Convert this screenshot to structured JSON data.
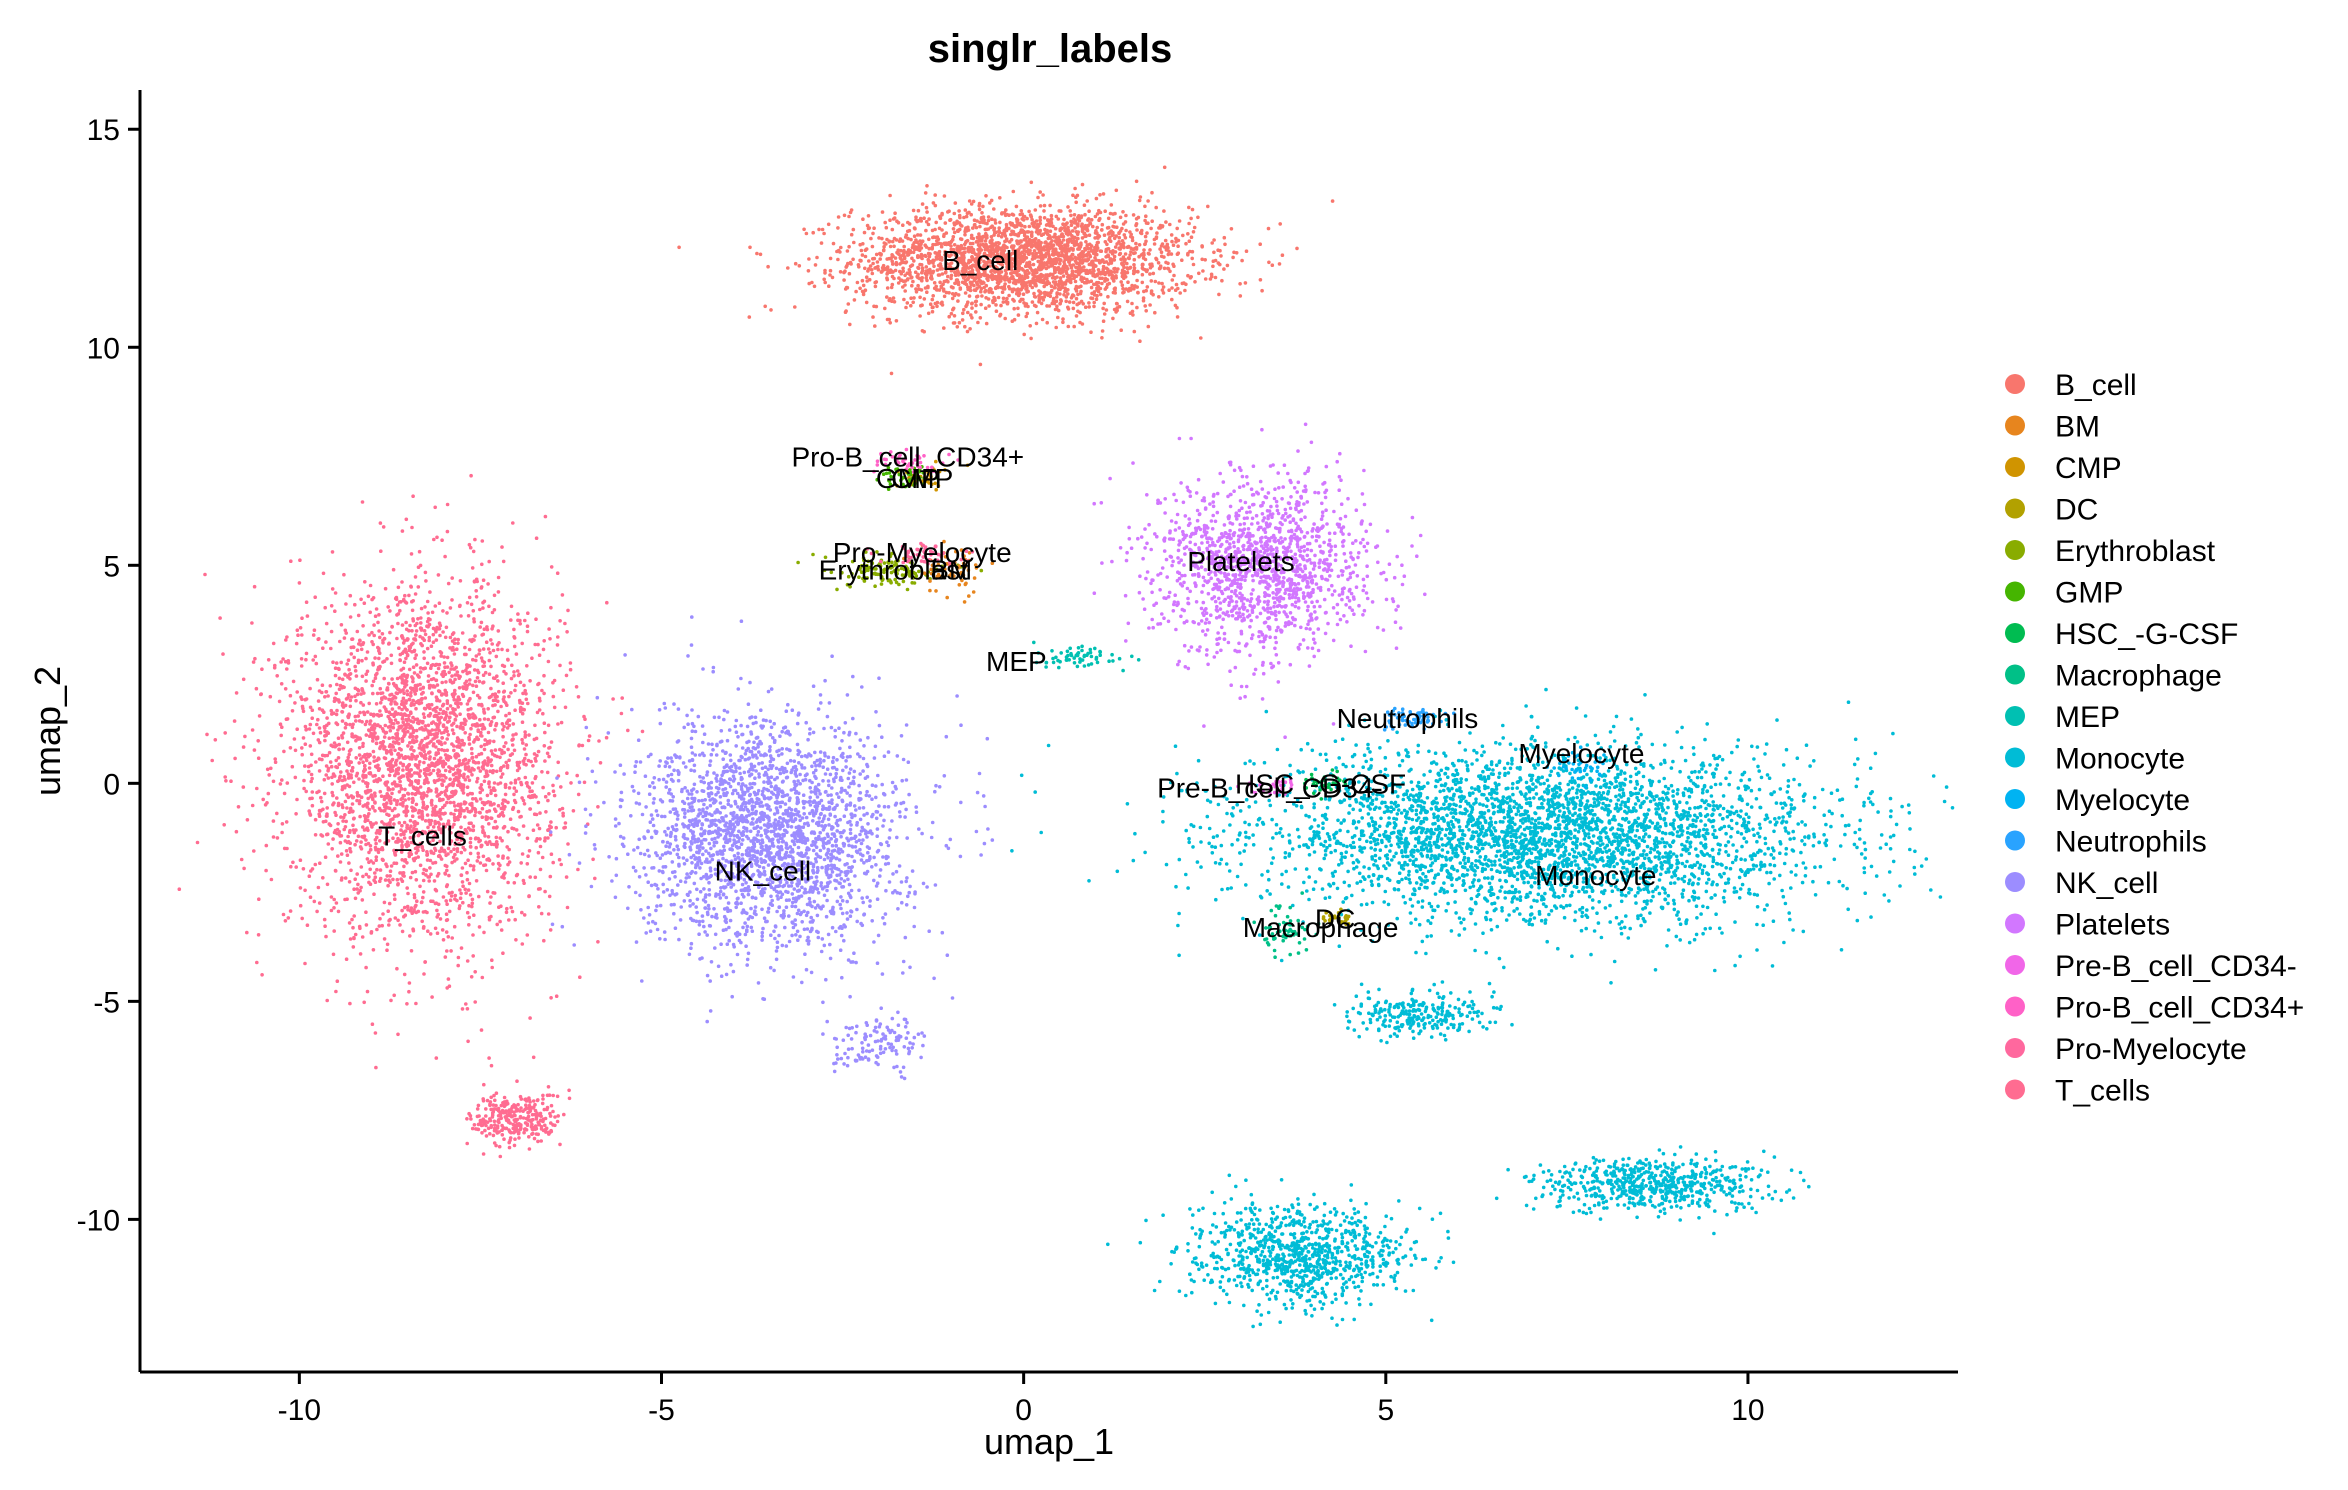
{
  "chart_data": {
    "type": "scatter",
    "title": "singlr_labels",
    "xlabel": "umap_1",
    "ylabel": "umap_2",
    "xlim": [
      -12.2,
      12.9
    ],
    "ylim": [
      -13.5,
      15.9
    ],
    "x_ticks": [
      -10,
      -5,
      0,
      5,
      10
    ],
    "y_ticks": [
      -10,
      -5,
      0,
      5,
      10,
      15
    ],
    "x_tick_labels": [
      "-10",
      "-5",
      "0",
      "5",
      "10"
    ],
    "y_tick_labels": [
      "-10",
      "-5",
      "0",
      "5",
      "10",
      "15"
    ],
    "grid": false,
    "legend_position": "right",
    "legend": [
      {
        "name": "B_cell",
        "color": "#F8766D"
      },
      {
        "name": "BM",
        "color": "#E7851E"
      },
      {
        "name": "CMP",
        "color": "#D09400"
      },
      {
        "name": "DC",
        "color": "#B2A100"
      },
      {
        "name": "Erythroblast",
        "color": "#89AC00"
      },
      {
        "name": "GMP",
        "color": "#45B500"
      },
      {
        "name": "HSC_-G-CSF",
        "color": "#00BC51"
      },
      {
        "name": "Macrophage",
        "color": "#00C087"
      },
      {
        "name": "MEP",
        "color": "#00C0B2"
      },
      {
        "name": "Monocyte",
        "color": "#00BCD6"
      },
      {
        "name": "Myelocyte",
        "color": "#00B3F2"
      },
      {
        "name": "Neutrophils",
        "color": "#29A3FF"
      },
      {
        "name": "NK_cell",
        "color": "#9C8DFF"
      },
      {
        "name": "Platelets",
        "color": "#D277FF"
      },
      {
        "name": "Pre-B_cell_CD34-",
        "color": "#F166E8"
      },
      {
        "name": "Pro-B_cell_CD34+",
        "color": "#FF61C7"
      },
      {
        "name": "Pro-Myelocyte",
        "color": "#FF689E"
      },
      {
        "name": "T_cells",
        "color": "#FF6C91"
      }
    ],
    "cluster_labels": [
      {
        "text": "B_cell",
        "x": -0.6,
        "y": 12.0
      },
      {
        "text": "Pro-B_cell_CD34+",
        "x": -1.6,
        "y": 7.5
      },
      {
        "text": "CMP",
        "x": -1.4,
        "y": 7.0
      },
      {
        "text": "GMP",
        "x": -1.6,
        "y": 7.0
      },
      {
        "text": "Pro-Myelocyte",
        "x": -1.4,
        "y": 5.3
      },
      {
        "text": "Erythroblast",
        "x": -1.8,
        "y": 4.9
      },
      {
        "text": "BM",
        "x": -1.0,
        "y": 4.9
      },
      {
        "text": "Platelets",
        "x": 3.0,
        "y": 5.1
      },
      {
        "text": "MEP",
        "x": -0.1,
        "y": 2.8
      },
      {
        "text": "Neutrophils",
        "x": 5.3,
        "y": 1.5
      },
      {
        "text": "Myelocyte",
        "x": 7.7,
        "y": 0.7
      },
      {
        "text": "Pre-B_cell_CD34-",
        "x": 3.4,
        "y": -0.1
      },
      {
        "text": "HSC_-G-CSF",
        "x": 4.1,
        "y": 0.0
      },
      {
        "text": "Monocyte",
        "x": 7.9,
        "y": -2.1
      },
      {
        "text": "DC",
        "x": 4.3,
        "y": -3.1
      },
      {
        "text": "Macrophage",
        "x": 4.1,
        "y": -3.3
      },
      {
        "text": "T_cells",
        "x": -8.3,
        "y": -1.2
      },
      {
        "text": "NK_cell",
        "x": -3.6,
        "y": -2.0
      }
    ],
    "clusters": [
      {
        "label": "B_cell",
        "cx": 0.0,
        "cy": 12.0,
        "sx": 1.9,
        "sy": 1.0,
        "n": 2600
      },
      {
        "label": "T_cells",
        "cx": -8.3,
        "cy": 0.5,
        "sx": 1.5,
        "sy": 3.2,
        "n": 3200
      },
      {
        "label": "T_cells",
        "cx": -7.0,
        "cy": -7.7,
        "sx": 0.5,
        "sy": 0.5,
        "n": 300
      },
      {
        "label": "NK_cell",
        "cx": -3.5,
        "cy": -1.2,
        "sx": 1.5,
        "sy": 2.1,
        "n": 2400
      },
      {
        "label": "NK_cell",
        "cx": -2.0,
        "cy": -6.0,
        "sx": 0.5,
        "sy": 0.5,
        "n": 120
      },
      {
        "label": "Platelets",
        "cx": 3.3,
        "cy": 5.0,
        "sx": 1.2,
        "sy": 1.6,
        "n": 1400
      },
      {
        "label": "Monocyte",
        "cx": 7.2,
        "cy": -1.2,
        "sx": 3.2,
        "sy": 1.6,
        "n": 3600
      },
      {
        "label": "Monocyte",
        "cx": 3.8,
        "cy": -10.8,
        "sx": 1.2,
        "sy": 0.9,
        "n": 900
      },
      {
        "label": "Monocyte",
        "cx": 8.7,
        "cy": -9.2,
        "sx": 1.3,
        "sy": 0.5,
        "n": 600
      },
      {
        "label": "Monocyte",
        "cx": 5.5,
        "cy": -5.3,
        "sx": 0.8,
        "sy": 0.4,
        "n": 250
      },
      {
        "label": "Erythroblast",
        "cx": -1.8,
        "cy": 4.9,
        "sx": 0.7,
        "sy": 0.3,
        "n": 120
      },
      {
        "label": "BM",
        "cx": -1.0,
        "cy": 4.9,
        "sx": 0.4,
        "sy": 0.4,
        "n": 60
      },
      {
        "label": "CMP",
        "cx": -1.4,
        "cy": 7.0,
        "sx": 0.3,
        "sy": 0.2,
        "n": 40
      },
      {
        "label": "GMP",
        "cx": -1.6,
        "cy": 7.0,
        "sx": 0.3,
        "sy": 0.2,
        "n": 40
      },
      {
        "label": "Pro-B_cell_CD34+",
        "cx": -1.6,
        "cy": 7.4,
        "sx": 0.4,
        "sy": 0.2,
        "n": 40
      },
      {
        "label": "Pro-Myelocyte",
        "cx": -1.4,
        "cy": 5.2,
        "sx": 0.5,
        "sy": 0.2,
        "n": 50
      },
      {
        "label": "MEP",
        "cx": 0.8,
        "cy": 2.9,
        "sx": 0.5,
        "sy": 0.2,
        "n": 60
      },
      {
        "label": "Neutrophils",
        "cx": 5.3,
        "cy": 1.5,
        "sx": 0.3,
        "sy": 0.2,
        "n": 60
      },
      {
        "label": "Myelocyte",
        "cx": 7.7,
        "cy": 0.4,
        "sx": 0.3,
        "sy": 0.3,
        "n": 40
      },
      {
        "label": "Pre-B_cell_CD34-",
        "cx": 3.4,
        "cy": -0.1,
        "sx": 0.3,
        "sy": 0.2,
        "n": 30
      },
      {
        "label": "HSC_-G-CSF",
        "cx": 4.1,
        "cy": 0.0,
        "sx": 0.3,
        "sy": 0.2,
        "n": 30
      },
      {
        "label": "DC",
        "cx": 4.3,
        "cy": -3.1,
        "sx": 0.2,
        "sy": 0.2,
        "n": 25
      },
      {
        "label": "Macrophage",
        "cx": 3.6,
        "cy": -3.3,
        "sx": 0.3,
        "sy": 0.5,
        "n": 60
      }
    ]
  }
}
